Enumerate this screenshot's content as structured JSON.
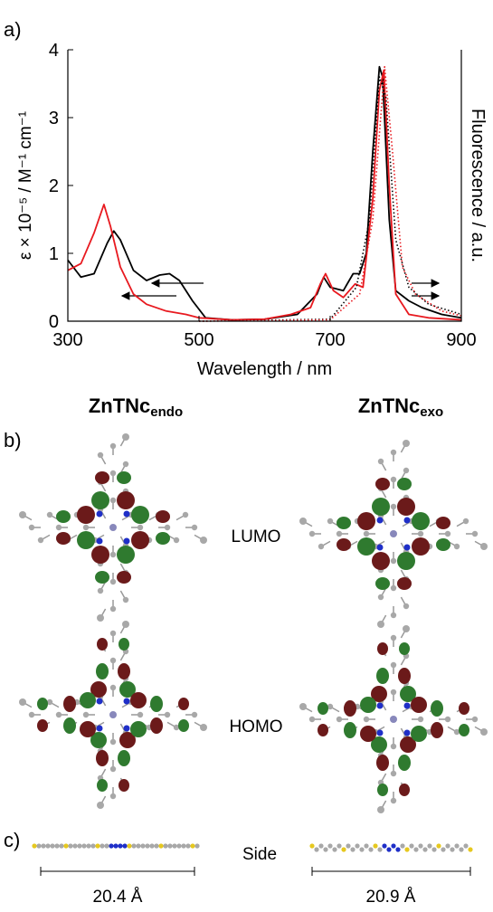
{
  "panel_labels": [
    "a)",
    "b)",
    "c)"
  ],
  "chart_data": {
    "type": "line",
    "xlabel": "Wavelength / nm",
    "ylabel": "ε × 10⁻⁵ / M⁻¹ cm⁻¹",
    "y2label": "Fluorescence / a.u.",
    "xlim": [
      300,
      900
    ],
    "xticks": [
      300,
      500,
      700,
      900
    ],
    "ylim": [
      0,
      4
    ],
    "yticks": [
      0,
      1,
      2,
      3,
      4
    ],
    "y2lim": [
      0,
      4
    ],
    "series": [
      {
        "color": "#000000",
        "line_style": "solid",
        "x": [
          300,
          320,
          340,
          360,
          370,
          380,
          400,
          420,
          440,
          455,
          470,
          490,
          510,
          550,
          600,
          650,
          680,
          690,
          700,
          720,
          735,
          745,
          755,
          765,
          775,
          780,
          790,
          800,
          820,
          840,
          870,
          900
        ],
        "values": [
          0.9,
          0.65,
          0.7,
          1.15,
          1.33,
          1.2,
          0.75,
          0.6,
          0.68,
          0.7,
          0.6,
          0.3,
          0.05,
          0.02,
          0.03,
          0.1,
          0.4,
          0.65,
          0.5,
          0.45,
          0.7,
          0.7,
          1.0,
          2.5,
          3.75,
          3.6,
          1.5,
          0.45,
          0.3,
          0.2,
          0.1,
          0.05
        ]
      },
      {
        "color": "#e8191f",
        "line_style": "solid",
        "x": [
          300,
          320,
          340,
          355,
          365,
          380,
          400,
          420,
          450,
          480,
          500,
          550,
          600,
          640,
          670,
          685,
          693,
          705,
          720,
          738,
          750,
          765,
          775,
          782,
          790,
          800,
          820,
          850,
          900
        ],
        "values": [
          0.75,
          0.85,
          1.3,
          1.72,
          1.4,
          0.8,
          0.4,
          0.25,
          0.15,
          0.1,
          0.05,
          0.02,
          0.03,
          0.1,
          0.2,
          0.55,
          0.7,
          0.45,
          0.35,
          0.55,
          0.5,
          1.8,
          3.4,
          3.7,
          2.0,
          0.4,
          0.1,
          0.05,
          0.02
        ]
      },
      {
        "color": "#000000",
        "line_style": "dotted",
        "axis": "y2",
        "x": [
          500,
          700,
          740,
          760,
          775,
          785,
          800,
          820,
          850,
          900
        ],
        "values": [
          0,
          0.03,
          0.5,
          1.5,
          3.6,
          3.3,
          1.2,
          0.5,
          0.25,
          0.1
        ]
      },
      {
        "color": "#e8191f",
        "line_style": "dotted",
        "axis": "y2",
        "x": [
          500,
          700,
          745,
          765,
          783,
          795,
          810,
          830,
          870,
          900
        ],
        "values": [
          0,
          0.02,
          0.4,
          1.5,
          3.75,
          2.5,
          0.8,
          0.4,
          0.15,
          0.08
        ]
      }
    ]
  },
  "panel_b": {
    "columns": [
      {
        "name": "ZnTNc",
        "subscript": "endo"
      },
      {
        "name": "ZnTNc",
        "subscript": "exo"
      }
    ],
    "rows": [
      "LUMO",
      "HOMO"
    ]
  },
  "panel_c": {
    "label": "Side",
    "lengths": [
      "20.4 Å",
      "20.9 Å"
    ]
  }
}
